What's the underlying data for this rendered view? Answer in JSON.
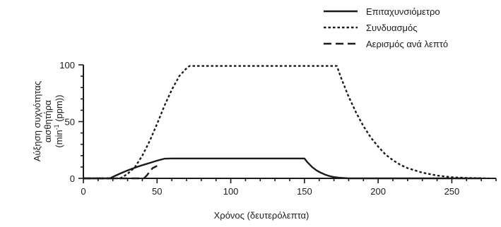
{
  "chart_data": {
    "type": "line",
    "xlabel": "Χρόνος (δευτερόλεπτα)",
    "ylabel_lines": [
      "Αύξηση συχνότητας",
      "αισθητήρα",
      "(min",
      "-1",
      " (ppm))"
    ],
    "xlim": [
      0,
      280
    ],
    "ylim": [
      0,
      100
    ],
    "x_ticks": [
      0,
      50,
      100,
      150,
      200,
      250
    ],
    "y_ticks": [
      0,
      50,
      100
    ],
    "x_minor_step": 10,
    "y_minor_step": 10,
    "grid": false,
    "legend_position": "top-right",
    "series": [
      {
        "name": "Επιταχυνσιόμετρο",
        "dash": "solid",
        "x": [
          0,
          18,
          20,
          25,
          30,
          35,
          40,
          45,
          50,
          55,
          60,
          100,
          150,
          152,
          155,
          158,
          161,
          164,
          167,
          170,
          173,
          176,
          180,
          190,
          270
        ],
        "y": [
          0,
          0,
          1.3,
          4.3,
          7,
          9.4,
          11.6,
          13.6,
          15.6,
          17.3,
          17.5,
          17.5,
          17.5,
          14.2,
          10.2,
          7.2,
          5,
          3.3,
          2,
          1.1,
          0.6,
          0.3,
          0,
          0,
          0
        ]
      },
      {
        "name": "Συνδυασμός",
        "dash": "dotted",
        "x": [
          0,
          25,
          30,
          35,
          40,
          45,
          50,
          55,
          60,
          65,
          70,
          72,
          100,
          130,
          172,
          175,
          180,
          185,
          190,
          195,
          200,
          205,
          210,
          215,
          220,
          230,
          240,
          250,
          260,
          270,
          275
        ],
        "y": [
          0,
          0,
          4,
          10,
          20,
          33,
          48,
          64,
          78,
          90,
          97,
          99,
          99,
          99,
          99,
          88,
          72,
          58,
          46,
          36,
          28,
          21,
          16,
          12,
          9,
          5,
          2.5,
          1,
          0.4,
          0.1,
          0
        ]
      },
      {
        "name": "Αερισμός ανά λεπτό",
        "dash": "dashed",
        "x": [
          0,
          18,
          20,
          25,
          30,
          35,
          40,
          41,
          43,
          45,
          47,
          50
        ],
        "y": [
          0,
          0,
          0,
          0,
          0,
          0,
          0,
          0,
          2.5,
          6,
          9,
          11
        ]
      }
    ]
  }
}
